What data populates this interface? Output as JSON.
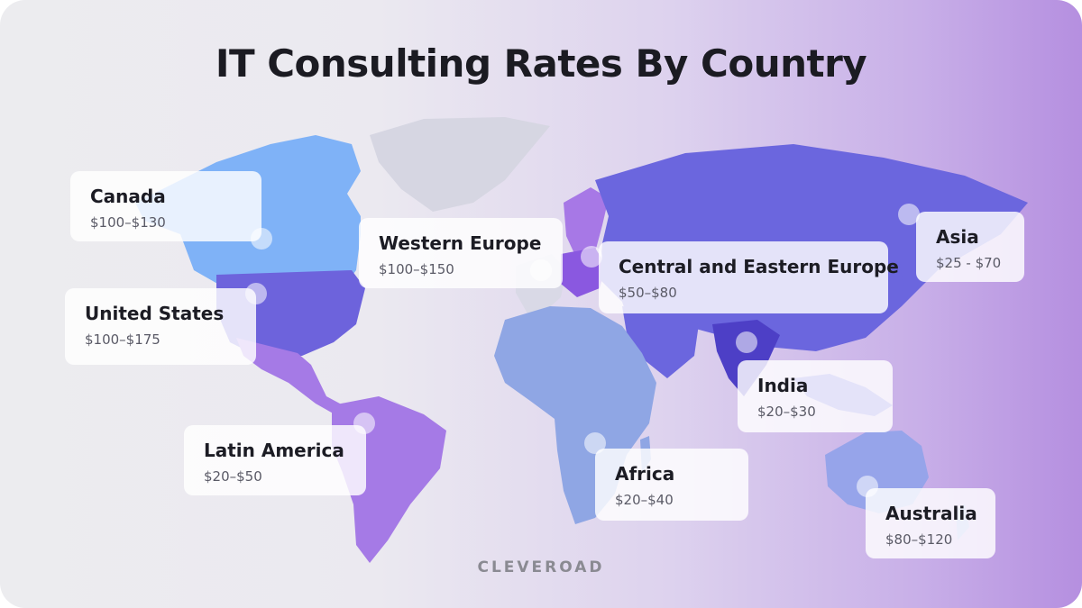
{
  "title": "IT Consulting Rates By Country",
  "brand": "CLEVEROAD",
  "colors": {
    "canada": "#7fb2f7",
    "united_states": "#6d63dc",
    "latin_america": "#a57ae6",
    "western_europe": "#d9d9e6",
    "scandinavia": "#a778e6",
    "central_eastern_europe": "#8a58e0",
    "africa": "#8fa6e4",
    "russia_asia": "#6b66de",
    "india": "#4d3fc6",
    "australia": "#96a4ea",
    "greenland": "#d6d6e2"
  },
  "regions": [
    {
      "id": "canada",
      "name": "Canada",
      "rate": "$100–$130"
    },
    {
      "id": "united-states",
      "name": "United States",
      "rate": "$100–$175"
    },
    {
      "id": "western-europe",
      "name": "Western Europe",
      "rate": "$100–$150"
    },
    {
      "id": "central-eastern-europe",
      "name": "Central and Eastern Europe",
      "rate": "$50–$80"
    },
    {
      "id": "asia",
      "name": "Asia",
      "rate": "$25 - $70"
    },
    {
      "id": "india",
      "name": "India",
      "rate": "$20–$30"
    },
    {
      "id": "latin-america",
      "name": "Latin America",
      "rate": "$20–$50"
    },
    {
      "id": "africa",
      "name": "Africa",
      "rate": "$20–$40"
    },
    {
      "id": "australia",
      "name": "Australia",
      "rate": "$80–$120"
    }
  ]
}
